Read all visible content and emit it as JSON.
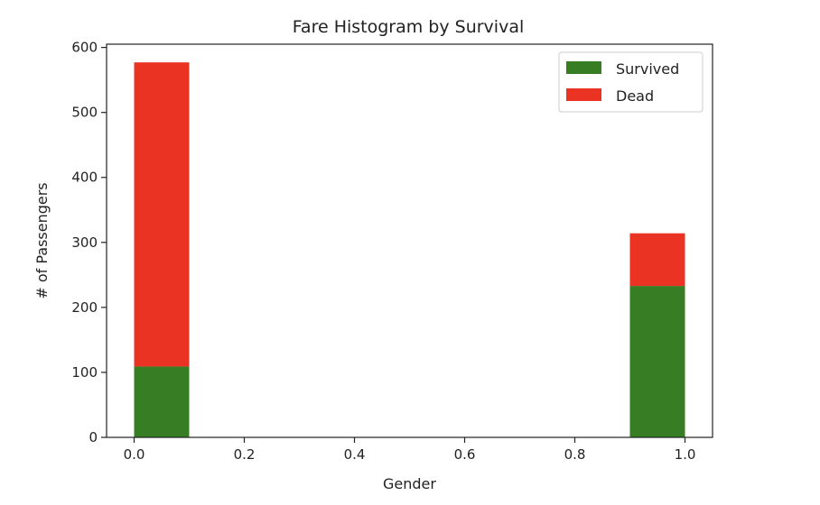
{
  "chart_data": {
    "type": "bar",
    "stacked": true,
    "title": "Fare Histogram by Survival",
    "xlabel": "Gender",
    "ylabel": "# of Passengers",
    "xlim": [
      -0.05,
      1.05
    ],
    "ylim": [
      0,
      605
    ],
    "xticks": [
      "0.0",
      "0.2",
      "0.4",
      "0.6",
      "0.8",
      "1.0"
    ],
    "xtick_values": [
      0.0,
      0.2,
      0.4,
      0.6,
      0.8,
      1.0
    ],
    "yticks": [
      "0",
      "100",
      "200",
      "300",
      "400",
      "500",
      "600"
    ],
    "ytick_values": [
      0,
      100,
      200,
      300,
      400,
      500,
      600
    ],
    "bins": [
      {
        "x0": 0.0,
        "x1": 0.1
      },
      {
        "x0": 0.9,
        "x1": 1.0
      }
    ],
    "series": [
      {
        "name": "Survived",
        "color": "#367d24",
        "values": [
          109,
          233
        ]
      },
      {
        "name": "Dead",
        "color": "#ea3323",
        "values": [
          468,
          81
        ]
      }
    ],
    "legend_position": "top-right",
    "grid": false
  }
}
